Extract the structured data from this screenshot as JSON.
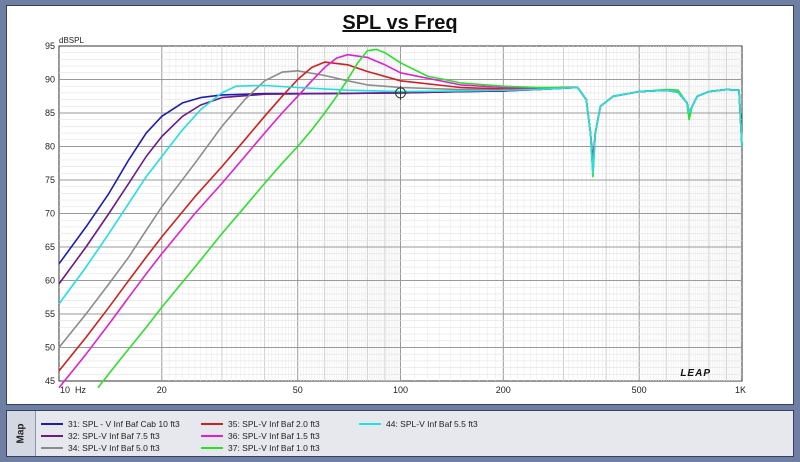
{
  "chart_data": {
    "type": "line",
    "title": "SPL vs Freq",
    "ylabel": "dBSPL",
    "xlabel": "",
    "x_scale": "log",
    "xlim": [
      10,
      1000
    ],
    "ylim": [
      45,
      95
    ],
    "y_ticks": [
      45,
      50,
      55,
      60,
      65,
      70,
      75,
      80,
      85,
      90,
      95
    ],
    "x_ticks": [
      {
        "value": 10,
        "label": "10  Hz"
      },
      {
        "value": 20,
        "label": "20"
      },
      {
        "value": 50,
        "label": "50"
      },
      {
        "value": 100,
        "label": "100"
      },
      {
        "value": 200,
        "label": "200"
      },
      {
        "value": 500,
        "label": "500"
      },
      {
        "value": 1000,
        "label": "1K"
      }
    ],
    "grid": true,
    "logo": "LEAP",
    "legend_position": "bottom",
    "series": [
      {
        "name": "31: SPL - V Inf Baf Cab 10 ft3",
        "color": "#1c1cb4",
        "points": [
          [
            10,
            62.5
          ],
          [
            12,
            68
          ],
          [
            14,
            73
          ],
          [
            16,
            78
          ],
          [
            18,
            82
          ],
          [
            20,
            84.5
          ],
          [
            23,
            86.5
          ],
          [
            26,
            87.3
          ],
          [
            30,
            87.7
          ],
          [
            40,
            87.9
          ],
          [
            60,
            87.9
          ],
          [
            100,
            88
          ],
          [
            150,
            88.2
          ],
          [
            200,
            88.3
          ],
          [
            250,
            88.5
          ],
          [
            300,
            88.7
          ],
          [
            330,
            88.8
          ],
          [
            350,
            87
          ],
          [
            360,
            82
          ],
          [
            366,
            78
          ],
          [
            372,
            82
          ],
          [
            385,
            86
          ],
          [
            420,
            87.5
          ],
          [
            500,
            88.2
          ],
          [
            600,
            88.4
          ],
          [
            650,
            88.1
          ],
          [
            690,
            86.5
          ],
          [
            700,
            85
          ],
          [
            715,
            86
          ],
          [
            740,
            87.5
          ],
          [
            800,
            88.2
          ],
          [
            900,
            88.5
          ],
          [
            980,
            88.4
          ],
          [
            1000,
            80
          ]
        ]
      },
      {
        "name": "32: SPL-V Inf Baf 7.5 ft3",
        "color": "#6a1a8a",
        "points": [
          [
            10,
            59.5
          ],
          [
            12,
            65
          ],
          [
            14,
            70
          ],
          [
            16,
            74.5
          ],
          [
            18,
            78.5
          ],
          [
            20,
            81.5
          ],
          [
            23,
            84.5
          ],
          [
            26,
            86.2
          ],
          [
            30,
            87.3
          ],
          [
            40,
            87.8
          ],
          [
            60,
            87.9
          ],
          [
            100,
            88
          ],
          [
            150,
            88.2
          ],
          [
            200,
            88.3
          ],
          [
            250,
            88.5
          ],
          [
            300,
            88.7
          ],
          [
            330,
            88.8
          ],
          [
            350,
            87
          ],
          [
            360,
            82
          ],
          [
            366,
            77.5
          ],
          [
            372,
            82
          ],
          [
            385,
            86
          ],
          [
            420,
            87.5
          ],
          [
            500,
            88.2
          ],
          [
            600,
            88.4
          ],
          [
            650,
            88.1
          ],
          [
            690,
            86.5
          ],
          [
            700,
            85
          ],
          [
            715,
            86
          ],
          [
            740,
            87.5
          ],
          [
            800,
            88.2
          ],
          [
            900,
            88.5
          ],
          [
            980,
            88.4
          ],
          [
            1000,
            80
          ]
        ]
      },
      {
        "name": "34: SPL-V Inf Baf 5.0 ft3",
        "color": "#8c8c8c",
        "points": [
          [
            10,
            50
          ],
          [
            12,
            55
          ],
          [
            14,
            59.5
          ],
          [
            16,
            63.5
          ],
          [
            18,
            67.5
          ],
          [
            20,
            71
          ],
          [
            25,
            77.5
          ],
          [
            30,
            83
          ],
          [
            35,
            87
          ],
          [
            40,
            89.8
          ],
          [
            45,
            91.1
          ],
          [
            50,
            91.3
          ],
          [
            60,
            90.6
          ],
          [
            70,
            89.8
          ],
          [
            80,
            89.2
          ],
          [
            100,
            88.8
          ],
          [
            150,
            88.5
          ],
          [
            200,
            88.5
          ],
          [
            250,
            88.6
          ],
          [
            300,
            88.8
          ],
          [
            330,
            88.8
          ],
          [
            350,
            87
          ],
          [
            360,
            82
          ],
          [
            366,
            77
          ],
          [
            372,
            82
          ],
          [
            385,
            86
          ],
          [
            420,
            87.5
          ],
          [
            500,
            88.2
          ],
          [
            600,
            88.4
          ],
          [
            650,
            88.1
          ],
          [
            690,
            86.5
          ],
          [
            700,
            85
          ],
          [
            715,
            86
          ],
          [
            740,
            87.5
          ],
          [
            800,
            88.2
          ],
          [
            900,
            88.5
          ],
          [
            980,
            88.4
          ],
          [
            1000,
            80
          ]
        ]
      },
      {
        "name": "35: SPL-V Inf Baf 2.0 ft3",
        "color": "#d02020",
        "points": [
          [
            10,
            46.5
          ],
          [
            12,
            51.5
          ],
          [
            14,
            56
          ],
          [
            16,
            60
          ],
          [
            18,
            63.5
          ],
          [
            20,
            66.5
          ],
          [
            25,
            72.5
          ],
          [
            30,
            77
          ],
          [
            35,
            81
          ],
          [
            40,
            84.5
          ],
          [
            45,
            87.5
          ],
          [
            50,
            90
          ],
          [
            55,
            91.8
          ],
          [
            60,
            92.6
          ],
          [
            70,
            92.2
          ],
          [
            80,
            91.2
          ],
          [
            100,
            89.8
          ],
          [
            150,
            88.8
          ],
          [
            200,
            88.6
          ],
          [
            250,
            88.6
          ],
          [
            300,
            88.8
          ],
          [
            330,
            88.8
          ],
          [
            350,
            87
          ],
          [
            360,
            82
          ],
          [
            366,
            76.5
          ],
          [
            372,
            82
          ],
          [
            385,
            86
          ],
          [
            420,
            87.5
          ],
          [
            500,
            88.2
          ],
          [
            600,
            88.4
          ],
          [
            650,
            88.1
          ],
          [
            690,
            86.5
          ],
          [
            700,
            85
          ],
          [
            715,
            86
          ],
          [
            740,
            87.5
          ],
          [
            800,
            88.2
          ],
          [
            900,
            88.5
          ],
          [
            980,
            88.4
          ],
          [
            1000,
            80
          ]
        ]
      },
      {
        "name": "36: SPL-V Inf Baf 1.5 ft3",
        "color": "#e020d0",
        "points": [
          [
            10,
            44
          ],
          [
            12,
            49
          ],
          [
            14,
            53.5
          ],
          [
            16,
            57.5
          ],
          [
            18,
            61
          ],
          [
            20,
            64
          ],
          [
            25,
            70
          ],
          [
            30,
            74.5
          ],
          [
            35,
            78.5
          ],
          [
            40,
            82
          ],
          [
            45,
            85
          ],
          [
            50,
            87.5
          ],
          [
            55,
            89.8
          ],
          [
            60,
            91.8
          ],
          [
            65,
            93.2
          ],
          [
            70,
            93.7
          ],
          [
            80,
            93.3
          ],
          [
            90,
            92.2
          ],
          [
            100,
            91
          ],
          [
            150,
            89.2
          ],
          [
            200,
            88.8
          ],
          [
            250,
            88.7
          ],
          [
            300,
            88.8
          ],
          [
            330,
            88.8
          ],
          [
            350,
            87
          ],
          [
            360,
            82
          ],
          [
            366,
            76
          ],
          [
            372,
            82
          ],
          [
            385,
            86
          ],
          [
            420,
            87.5
          ],
          [
            500,
            88.2
          ],
          [
            600,
            88.4
          ],
          [
            650,
            88.1
          ],
          [
            690,
            86.5
          ],
          [
            700,
            84.5
          ],
          [
            715,
            86
          ],
          [
            740,
            87.5
          ],
          [
            800,
            88.2
          ],
          [
            900,
            88.5
          ],
          [
            980,
            88.4
          ],
          [
            1000,
            80
          ]
        ]
      },
      {
        "name": "37: SPL-V Inf Baf 1.0 ft3",
        "color": "#2ce02c",
        "points": [
          [
            13,
            44
          ],
          [
            15,
            48
          ],
          [
            18,
            53
          ],
          [
            20,
            56
          ],
          [
            25,
            62
          ],
          [
            30,
            67
          ],
          [
            35,
            71
          ],
          [
            40,
            74.5
          ],
          [
            45,
            77.5
          ],
          [
            50,
            80
          ],
          [
            55,
            82.5
          ],
          [
            60,
            85
          ],
          [
            65,
            87.5
          ],
          [
            70,
            90
          ],
          [
            75,
            92.5
          ],
          [
            80,
            94.3
          ],
          [
            85,
            94.5
          ],
          [
            90,
            94
          ],
          [
            100,
            92.5
          ],
          [
            120,
            90.5
          ],
          [
            150,
            89.5
          ],
          [
            200,
            89
          ],
          [
            250,
            88.8
          ],
          [
            300,
            88.8
          ],
          [
            330,
            88.8
          ],
          [
            350,
            87
          ],
          [
            360,
            82
          ],
          [
            366,
            75.5
          ],
          [
            372,
            82
          ],
          [
            385,
            86
          ],
          [
            420,
            87.5
          ],
          [
            500,
            88.2
          ],
          [
            600,
            88.5
          ],
          [
            650,
            88.4
          ],
          [
            690,
            86.5
          ],
          [
            700,
            84
          ],
          [
            715,
            86
          ],
          [
            740,
            87.5
          ],
          [
            800,
            88.2
          ],
          [
            900,
            88.5
          ],
          [
            980,
            88.4
          ],
          [
            1000,
            80
          ]
        ]
      },
      {
        "name": "44: SPL-V Inf Baf 5.5 ft3",
        "color": "#20e0e0",
        "points": [
          [
            10,
            56.5
          ],
          [
            12,
            62
          ],
          [
            14,
            67
          ],
          [
            16,
            71.5
          ],
          [
            18,
            75.5
          ],
          [
            20,
            78.5
          ],
          [
            23,
            82.5
          ],
          [
            26,
            85.5
          ],
          [
            30,
            88
          ],
          [
            33,
            89
          ],
          [
            40,
            89.1
          ],
          [
            50,
            88.8
          ],
          [
            70,
            88.4
          ],
          [
            100,
            88.2
          ],
          [
            150,
            88.3
          ],
          [
            200,
            88.4
          ],
          [
            250,
            88.5
          ],
          [
            300,
            88.7
          ],
          [
            330,
            88.8
          ],
          [
            350,
            87
          ],
          [
            360,
            82
          ],
          [
            366,
            76
          ],
          [
            372,
            82
          ],
          [
            385,
            86
          ],
          [
            420,
            87.5
          ],
          [
            500,
            88.2
          ],
          [
            600,
            88.4
          ],
          [
            650,
            88.1
          ],
          [
            690,
            86.5
          ],
          [
            700,
            85
          ],
          [
            715,
            86
          ],
          [
            740,
            87.5
          ],
          [
            800,
            88.2
          ],
          [
            900,
            88.5
          ],
          [
            980,
            88.4
          ],
          [
            1000,
            80
          ]
        ]
      }
    ]
  },
  "legend_panel": {
    "tab_label": "Map"
  }
}
